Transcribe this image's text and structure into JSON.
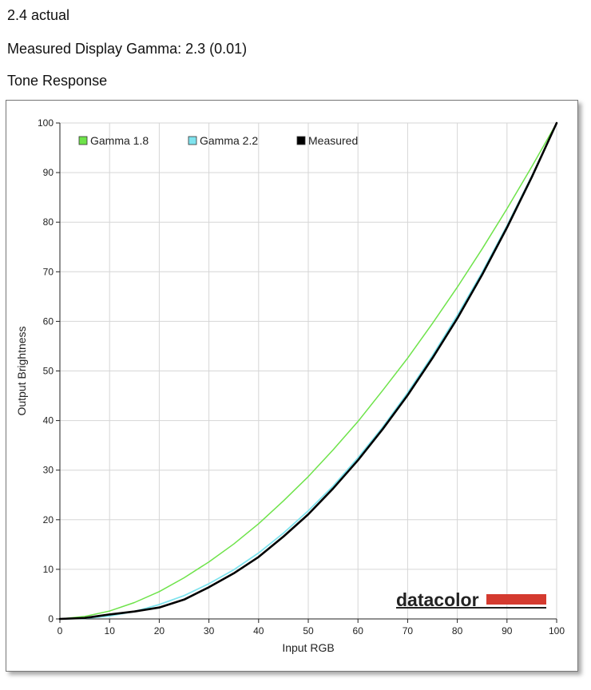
{
  "header": {
    "line1": "2.4 actual",
    "line2": "Measured Display Gamma: 2.3 (0.01)",
    "line3": "Tone Response"
  },
  "chart_data": {
    "type": "line",
    "xlabel": "Input RGB",
    "ylabel": "Output Brightness",
    "xlim": [
      0,
      100
    ],
    "ylim": [
      0,
      100
    ],
    "xticks": [
      0,
      10,
      20,
      30,
      40,
      50,
      60,
      70,
      80,
      90,
      100
    ],
    "yticks": [
      0,
      10,
      20,
      30,
      40,
      50,
      60,
      70,
      80,
      90,
      100
    ],
    "grid": true,
    "legend_position": "top-left",
    "series": [
      {
        "name": "Gamma 1.8",
        "color": "#6ee34a",
        "x": [
          0,
          5,
          10,
          15,
          20,
          25,
          30,
          35,
          40,
          45,
          50,
          55,
          60,
          65,
          70,
          75,
          80,
          85,
          90,
          95,
          100
        ],
        "values": [
          0,
          0.5,
          1.6,
          3.3,
          5.5,
          8.3,
          11.5,
          15.1,
          19.2,
          23.8,
          28.7,
          34.1,
          39.8,
          46.1,
          52.6,
          59.6,
          66.9,
          74.6,
          82.7,
          91.2,
          100
        ]
      },
      {
        "name": "Gamma 2.2",
        "color": "#7fe3ee",
        "x": [
          0,
          5,
          10,
          15,
          20,
          25,
          30,
          35,
          40,
          45,
          50,
          55,
          60,
          65,
          70,
          75,
          80,
          85,
          90,
          95,
          100
        ],
        "values": [
          0,
          0.1,
          0.6,
          1.5,
          2.9,
          4.7,
          7.1,
          9.9,
          13.3,
          17.3,
          21.8,
          26.8,
          32.5,
          38.7,
          45.6,
          53.1,
          61.2,
          69.9,
          79.3,
          89.3,
          100
        ]
      },
      {
        "name": "Measured",
        "color": "#000000",
        "x": [
          0,
          5,
          10,
          15,
          20,
          25,
          30,
          35,
          40,
          45,
          50,
          55,
          60,
          65,
          70,
          75,
          80,
          85,
          90,
          95,
          100
        ],
        "values": [
          0,
          0.2,
          0.9,
          1.5,
          2.3,
          3.9,
          6.4,
          9.2,
          12.5,
          16.6,
          21.1,
          26.3,
          32.0,
          38.3,
          45.1,
          52.6,
          60.6,
          69.4,
          78.9,
          89.1,
          100
        ]
      }
    ],
    "watermark": "datacolor"
  }
}
